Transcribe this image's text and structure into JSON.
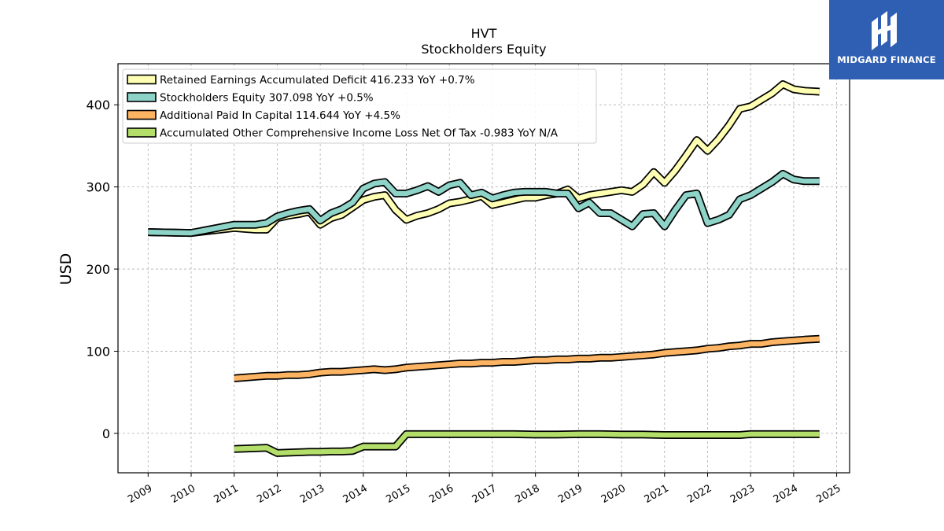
{
  "brand": {
    "name": "MIDGARD FINANCE",
    "color": "#2f5fb3",
    "icon": "midgard-logo-icon"
  },
  "chart_data": {
    "type": "line",
    "title": "HVT",
    "subtitle": "Stockholders  Equity",
    "ylabel": "USD",
    "xlabel": "",
    "ylim": [
      -48,
      450
    ],
    "xlim": [
      2008.3,
      2025.3
    ],
    "yticks": [
      0,
      100,
      200,
      300,
      400
    ],
    "xticks": [
      2009,
      2010,
      2011,
      2012,
      2013,
      2014,
      2015,
      2016,
      2017,
      2018,
      2019,
      2020,
      2021,
      2022,
      2023,
      2024,
      2025
    ],
    "grid": true,
    "legend_position": "top-left",
    "series": [
      {
        "name": "Retained Earnings Accumulated Deficit",
        "legend": "Retained Earnings Accumulated Deficit  416.233 YoY +0.7%",
        "color": "#ffffb3",
        "x": [
          2009.0,
          2010.0,
          2011.0,
          2011.25,
          2011.5,
          2011.75,
          2012.0,
          2012.25,
          2012.5,
          2012.75,
          2013.0,
          2013.25,
          2013.5,
          2013.75,
          2014.0,
          2014.25,
          2014.5,
          2014.75,
          2015.0,
          2015.25,
          2015.5,
          2015.75,
          2016.0,
          2016.25,
          2016.5,
          2016.75,
          2017.0,
          2017.25,
          2017.5,
          2017.75,
          2018.0,
          2018.25,
          2018.5,
          2018.75,
          2019.0,
          2019.25,
          2019.5,
          2019.75,
          2020.0,
          2020.25,
          2020.5,
          2020.75,
          2021.0,
          2021.25,
          2021.5,
          2021.75,
          2022.0,
          2022.25,
          2022.5,
          2022.75,
          2023.0,
          2023.25,
          2023.5,
          2023.75,
          2024.0,
          2024.25,
          2024.6
        ],
        "values": [
          245,
          244,
          250,
          249,
          248,
          248,
          262,
          265,
          267,
          270,
          254,
          262,
          266,
          275,
          284,
          288,
          290,
          272,
          260,
          265,
          268,
          273,
          280,
          282,
          285,
          289,
          278,
          281,
          284,
          287,
          287,
          290,
          292,
          297,
          286,
          290,
          292,
          294,
          296,
          294,
          303,
          318,
          305,
          320,
          338,
          357,
          344,
          358,
          375,
          395,
          398,
          406,
          414,
          425,
          419,
          417,
          416
        ]
      },
      {
        "name": "Stockholders Equity",
        "legend": "Stockholders Equity  307.098 YoY +0.5%",
        "color": "#8dd3c7",
        "x": [
          2009.0,
          2010.0,
          2011.0,
          2011.25,
          2011.5,
          2011.75,
          2012.0,
          2012.25,
          2012.5,
          2012.75,
          2013.0,
          2013.25,
          2013.5,
          2013.75,
          2014.0,
          2014.25,
          2014.5,
          2014.75,
          2015.0,
          2015.25,
          2015.5,
          2015.75,
          2016.0,
          2016.25,
          2016.5,
          2016.75,
          2017.0,
          2017.25,
          2017.5,
          2017.75,
          2018.0,
          2018.25,
          2018.5,
          2018.75,
          2019.0,
          2019.25,
          2019.5,
          2019.75,
          2020.0,
          2020.25,
          2020.5,
          2020.75,
          2021.0,
          2021.25,
          2021.5,
          2021.75,
          2022.0,
          2022.25,
          2022.5,
          2022.75,
          2023.0,
          2023.25,
          2023.5,
          2023.75,
          2024.0,
          2024.25,
          2024.6
        ],
        "values": [
          245,
          244,
          254,
          254,
          254,
          256,
          264,
          268,
          271,
          273,
          259,
          268,
          273,
          281,
          298,
          304,
          306,
          292,
          292,
          296,
          301,
          294,
          302,
          305,
          290,
          293,
          286,
          290,
          293,
          294,
          294,
          294,
          292,
          292,
          274,
          281,
          268,
          268,
          260,
          252,
          267,
          268,
          252,
          272,
          290,
          292,
          256,
          260,
          266,
          285,
          290,
          298,
          306,
          316,
          309,
          307,
          307
        ]
      },
      {
        "name": "Additional Paid In Capital",
        "legend": "Additional Paid In Capital  114.644 YoY +4.5%",
        "color": "#fdb462",
        "x": [
          2011.0,
          2011.25,
          2011.5,
          2011.75,
          2012.0,
          2012.25,
          2012.5,
          2012.75,
          2013.0,
          2013.25,
          2013.5,
          2013.75,
          2014.0,
          2014.25,
          2014.5,
          2014.75,
          2015.0,
          2015.25,
          2015.5,
          2015.75,
          2016.0,
          2016.25,
          2016.5,
          2016.75,
          2017.0,
          2017.25,
          2017.5,
          2017.75,
          2018.0,
          2018.25,
          2018.5,
          2018.75,
          2019.0,
          2019.25,
          2019.5,
          2019.75,
          2020.0,
          2020.25,
          2020.5,
          2020.75,
          2021.0,
          2021.25,
          2021.5,
          2021.75,
          2022.0,
          2022.25,
          2022.5,
          2022.75,
          2023.0,
          2023.25,
          2023.5,
          2023.75,
          2024.0,
          2024.25,
          2024.6
        ],
        "values": [
          67,
          68,
          69,
          70,
          70,
          71,
          71,
          72,
          74,
          75,
          75,
          76,
          77,
          78,
          77,
          78,
          80,
          81,
          82,
          83,
          84,
          85,
          85,
          86,
          86,
          87,
          87,
          88,
          89,
          89,
          90,
          90,
          91,
          91,
          92,
          92,
          93,
          94,
          95,
          96,
          98,
          99,
          100,
          101,
          103,
          104,
          106,
          107,
          109,
          109,
          111,
          112,
          113,
          114,
          115
        ]
      },
      {
        "name": "Accumulated Other Comprehensive Income Loss Net Of Tax",
        "legend": "Accumulated Other Comprehensive Income Loss Net Of Tax  -0.983 YoY N/A",
        "color": "#b3de69",
        "x": [
          2011.0,
          2011.25,
          2011.5,
          2011.75,
          2012.0,
          2012.25,
          2012.5,
          2012.75,
          2013.0,
          2013.25,
          2013.5,
          2013.75,
          2014.0,
          2014.25,
          2014.5,
          2014.75,
          2015.0,
          2015.25,
          2015.5,
          2015.75,
          2016.0,
          2016.5,
          2017.0,
          2017.5,
          2018.0,
          2018.5,
          2019.0,
          2019.5,
          2020.0,
          2020.5,
          2021.0,
          2021.5,
          2022.0,
          2022.5,
          2022.75,
          2023.0,
          2023.5,
          2024.0,
          2024.6
        ],
        "values": [
          -19,
          -18.5,
          -18,
          -17.5,
          -24,
          -23.5,
          -23,
          -22.5,
          -22.5,
          -22,
          -22,
          -21.5,
          -16,
          -16,
          -16,
          -16,
          -1,
          -1,
          -1,
          -1,
          -1,
          -1,
          -1,
          -1,
          -1.5,
          -1.5,
          -1,
          -1,
          -1.5,
          -1.5,
          -2,
          -2,
          -2,
          -2,
          -2,
          -1,
          -1,
          -1,
          -1
        ]
      }
    ]
  }
}
